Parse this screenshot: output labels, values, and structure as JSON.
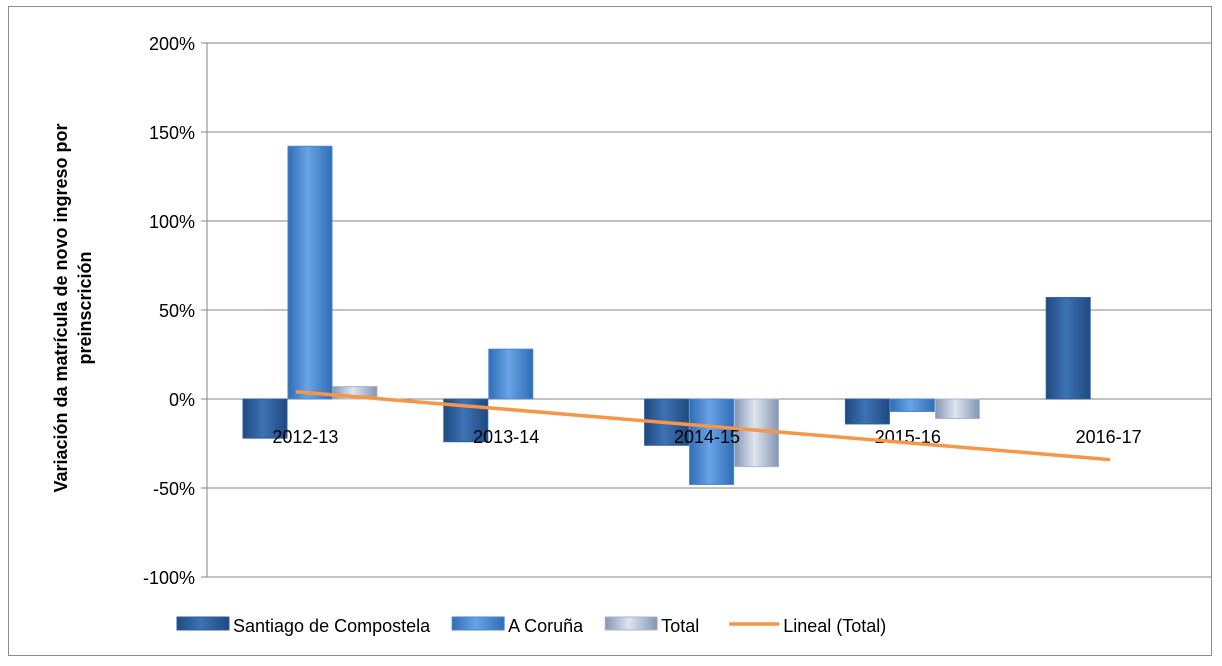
{
  "chart_data": {
    "type": "bar",
    "title": "",
    "xlabel": "",
    "ylabel_line1": "Variación da matrícula de novo ingreso por",
    "ylabel_line2": "preinscrición",
    "ylim": [
      -1.0,
      2.0
    ],
    "yticks": [
      {
        "value": 2.0,
        "label": "200%"
      },
      {
        "value": 1.5,
        "label": "150%"
      },
      {
        "value": 1.0,
        "label": "100%"
      },
      {
        "value": 0.5,
        "label": "50%"
      },
      {
        "value": 0.0,
        "label": "0%"
      },
      {
        "value": -0.5,
        "label": "-50%"
      },
      {
        "value": -1.0,
        "label": "-100%"
      }
    ],
    "grid": true,
    "legend_position": "bottom",
    "categories": [
      "2012-13",
      "2013-14",
      "2014-15",
      "2015-16",
      "2016-17"
    ],
    "series": [
      {
        "name": "Santiago de Compostela",
        "color": "#2e5f9e",
        "values": [
          -0.22,
          -0.24,
          -0.26,
          -0.14,
          0.57
        ]
      },
      {
        "name": "A Coruña",
        "color": "#4a86cc",
        "values": [
          1.42,
          0.28,
          -0.48,
          -0.07,
          null
        ]
      },
      {
        "name": "Total",
        "color": "#a9b6cc",
        "values": [
          0.07,
          null,
          -0.38,
          -0.11,
          null
        ]
      }
    ],
    "trendline": {
      "name": "Lineal (Total)",
      "color": "#f79646",
      "start": 0.04,
      "end": -0.34
    }
  }
}
